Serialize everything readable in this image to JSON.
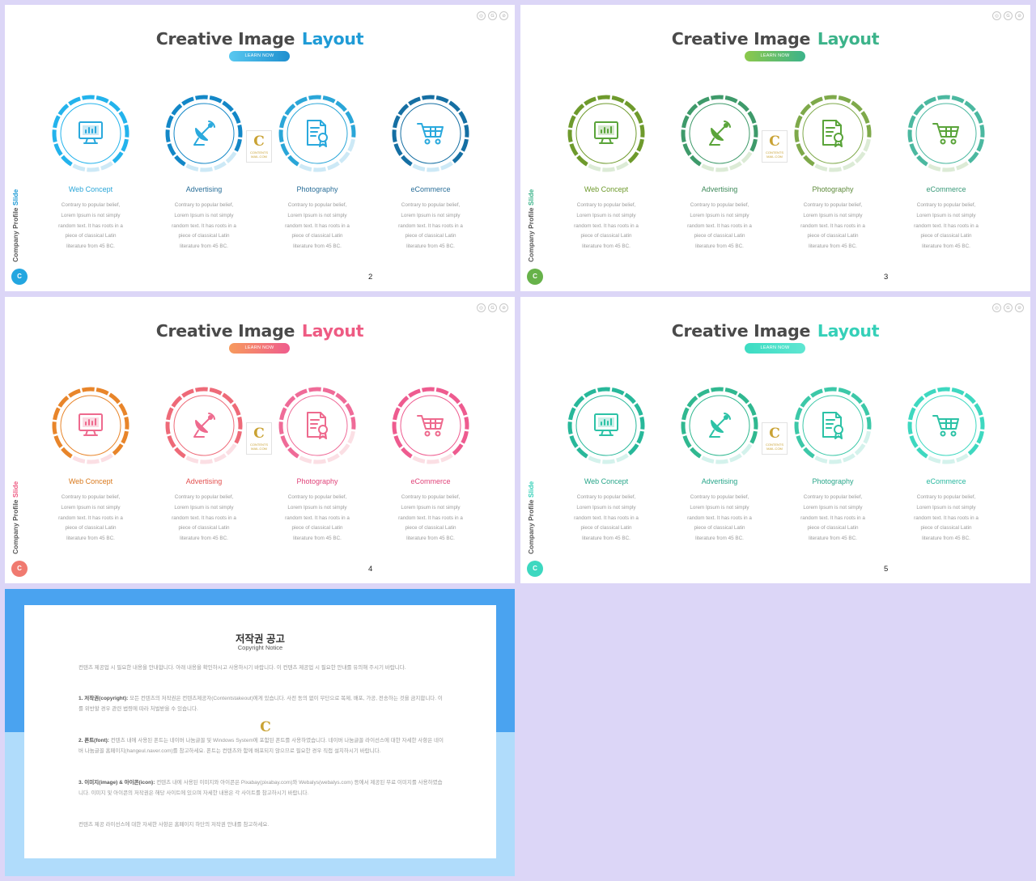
{
  "slides": [
    {
      "id": "s2",
      "page": "2",
      "title_main": "Creative Image",
      "title_accent": "Layout",
      "button": "LEARN NOW",
      "side_label_main": "Company Profile",
      "side_label_accent": "Slide",
      "brand_letter": "C",
      "colors": {
        "accent": "#1f9bd6",
        "button_from": "#58c8f0",
        "button_to": "#1f8fcf",
        "light": "#cde9f6",
        "icon": "#2aa9dd",
        "brand": "#23a6e0"
      },
      "ring_colors": [
        "#23b3ec",
        "#1387c7",
        "#2aa6d8",
        "#156fa3"
      ],
      "ring_fill": [
        0.78,
        0.72,
        0.68,
        0.8
      ],
      "label_colors": [
        "#2aa6d8",
        "#2a6f99",
        "#2a6f99",
        "#2a6f99"
      ],
      "items": [
        {
          "label": "Web Concept",
          "icon": "monitor-chart-icon"
        },
        {
          "label": "Advertising",
          "icon": "satellite-dish-icon"
        },
        {
          "label": "Photography",
          "icon": "certificate-document-icon"
        },
        {
          "label": "eCommerce",
          "icon": "shopping-cart-icon"
        }
      ]
    },
    {
      "id": "s3",
      "page": "3",
      "title_main": "Creative Image",
      "title_accent": "Layout",
      "button": "LEARN NOW",
      "side_label_main": "Company Profile",
      "side_label_accent": "Slide",
      "brand_letter": "C",
      "colors": {
        "accent": "#3cb38a",
        "button_from": "#8cc84b",
        "button_to": "#3cb38a",
        "light": "#dcebd6",
        "icon": "#5aa43a",
        "brand": "#67b24a"
      },
      "ring_colors": [
        "#6e9a2c",
        "#3e9a6a",
        "#7ea94a",
        "#4bb8a0"
      ],
      "ring_fill": [
        0.78,
        0.72,
        0.68,
        0.8
      ],
      "label_colors": [
        "#6e9a2c",
        "#3e8a5a",
        "#5e8a3a",
        "#3a9a7a"
      ],
      "items": [
        {
          "label": "Web Concept",
          "icon": "monitor-chart-icon"
        },
        {
          "label": "Advertising",
          "icon": "satellite-dish-icon"
        },
        {
          "label": "Photography",
          "icon": "certificate-document-icon"
        },
        {
          "label": "eCommerce",
          "icon": "shopping-cart-icon"
        }
      ]
    },
    {
      "id": "s4",
      "page": "4",
      "title_main": "Creative Image",
      "title_accent": "Layout",
      "button": "LEARN NOW",
      "side_label_main": "Company Profile",
      "side_label_accent": "Slide",
      "brand_letter": "C",
      "colors": {
        "accent": "#ee5b83",
        "button_from": "#f79a5c",
        "button_to": "#ef5c8d",
        "light": "#fbdfe4",
        "icon": "#ee6a8e",
        "brand": "#f07a70"
      },
      "ring_colors": [
        "#e8852a",
        "#ee6a78",
        "#ef6b98",
        "#ee5b8f"
      ],
      "ring_fill": [
        0.78,
        0.72,
        0.68,
        0.8
      ],
      "label_colors": [
        "#d9791c",
        "#e3504f",
        "#e0447a",
        "#e0447a"
      ],
      "items": [
        {
          "label": "Web Concept",
          "icon": "monitor-chart-icon"
        },
        {
          "label": "Advertising",
          "icon": "satellite-dish-icon"
        },
        {
          "label": "Photography",
          "icon": "certificate-document-icon"
        },
        {
          "label": "eCommerce",
          "icon": "shopping-cart-icon"
        }
      ]
    },
    {
      "id": "s5",
      "page": "5",
      "title_main": "Creative Image",
      "title_accent": "Layout",
      "button": "LEARN NOW",
      "side_label_main": "Company Profile",
      "side_label_accent": "Slide",
      "brand_letter": "C",
      "colors": {
        "accent": "#35d0b8",
        "button_from": "#3cdcc2",
        "button_to": "#5fe6d2",
        "light": "#d4f2ec",
        "icon": "#2cc2a6",
        "brand": "#3dd8c0"
      },
      "ring_colors": [
        "#28b89a",
        "#30b890",
        "#3cc8a8",
        "#3ed8c0"
      ],
      "ring_fill": [
        0.78,
        0.72,
        0.68,
        0.8
      ],
      "label_colors": [
        "#28a68a",
        "#28a68a",
        "#28a68a",
        "#2ab8a0"
      ],
      "items": [
        {
          "label": "Web Concept",
          "icon": "monitor-chart-icon"
        },
        {
          "label": "Advertising",
          "icon": "satellite-dish-icon"
        },
        {
          "label": "Photography",
          "icon": "certificate-document-icon"
        },
        {
          "label": "eCommerce",
          "icon": "shopping-cart-icon"
        }
      ]
    }
  ],
  "item_desc": [
    "Contrary to popular belief,",
    "Lorem Ipsum is not simply",
    "random text. It has roots in a",
    "piece of classical Latin",
    "literature from 45 BC."
  ],
  "social_icons": [
    "whatsapp-icon",
    "google-plus-icon",
    "share-icon"
  ],
  "logo": {
    "letter": "C",
    "line1": "CONTENTS",
    "line2": "MAIL.COM"
  },
  "notice": {
    "title": "저작권 공고",
    "subtitle": "Copyright Notice",
    "p1": "컨텐츠 제공업 시 필요한 내용을 안내합니다. 아래 내용을 확인하시고 사용하시기 바랍니다. 이 컨텐츠 제공업 시 필요한 안내를 유의해 주시기 바랍니다.",
    "p2_head": "1. 저작권(copyright):",
    "p2": "모든 컨텐츠의 저작권은 컨텐츠제공자(Contentstakeout)에게 있습니다. 사전 동의 없이 무단으로 복제, 배포, 가공, 전송하는 것을 금지합니다. 이를 위반할 경우 관련 법령에 따라 처벌받을 수 있습니다.",
    "p3_head": "2. 폰트(font):",
    "p3": "컨텐츠 내에 사용된 폰트는 네이버 나눔글꼴 및 Windows System에 포함된 폰트를 사용하였습니다. 네이버 나눔글꼴 라이선스에 대한 자세한 사항은 네이버 나눔글꼴 홈페이지(hangeul.naver.com)를 참고하세요. 폰트는 컨텐츠와 함께 배포되지 않으므로 필요한 경우 직접 설치하시기 바랍니다.",
    "p4_head": "3. 이미지(image) & 아이콘(icon):",
    "p4": "컨텐츠 내에 사용된 이미지와 아이콘은 Pixabay(pixabay.com)와 Webalys(webalys.com) 등에서 제공된 무료 이미지를 사용하였습니다. 이미지 및 아이콘의 저작권은 해당 사이트에 있으며 자세한 내용은 각 사이트를 참고하시기 바랍니다.",
    "p5": "컨텐츠 제공 라이선스에 대한 자세한 사항은 홈페이지 하단의 저작권 안내를 참고하세요."
  }
}
